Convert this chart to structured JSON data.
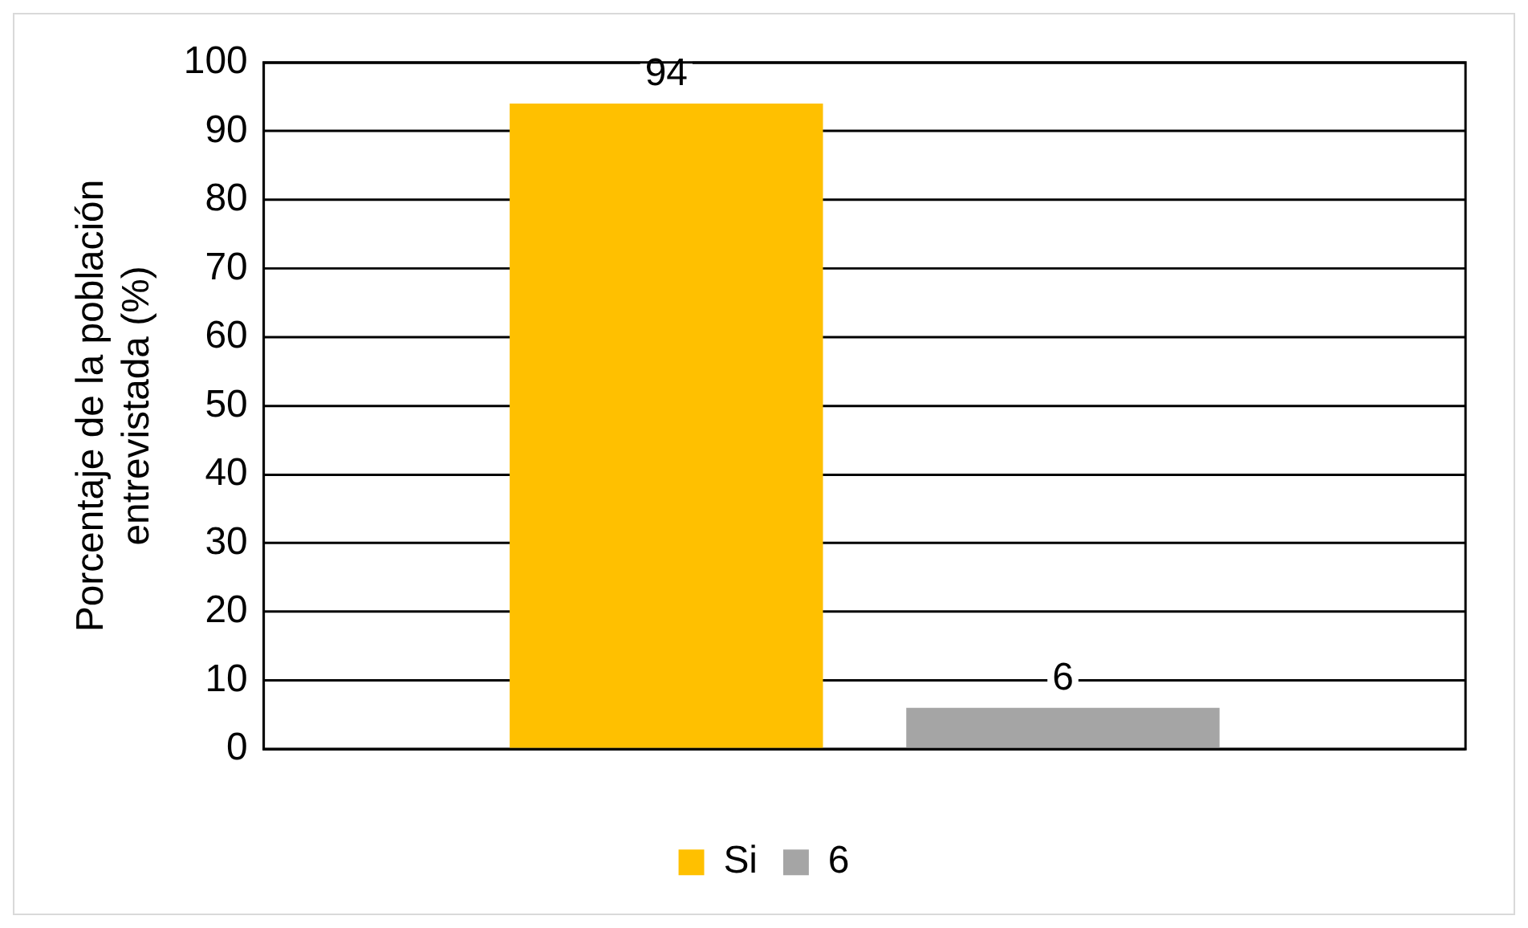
{
  "chart_data": {
    "type": "bar",
    "ylabel": "Porcentaje de la población entrevistada (%)",
    "categories": [
      null
    ],
    "series": [
      {
        "name": "Si",
        "color": "#ffc000",
        "values": [
          94
        ]
      },
      {
        "name": "6",
        "color": "#a5a5a5",
        "values": [
          6
        ]
      }
    ],
    "ylim": [
      0,
      100
    ],
    "yticks": [
      0,
      10,
      20,
      30,
      40,
      50,
      60,
      70,
      80,
      90,
      100
    ],
    "grid": "y",
    "legend": "bottom",
    "data_labels": true
  }
}
